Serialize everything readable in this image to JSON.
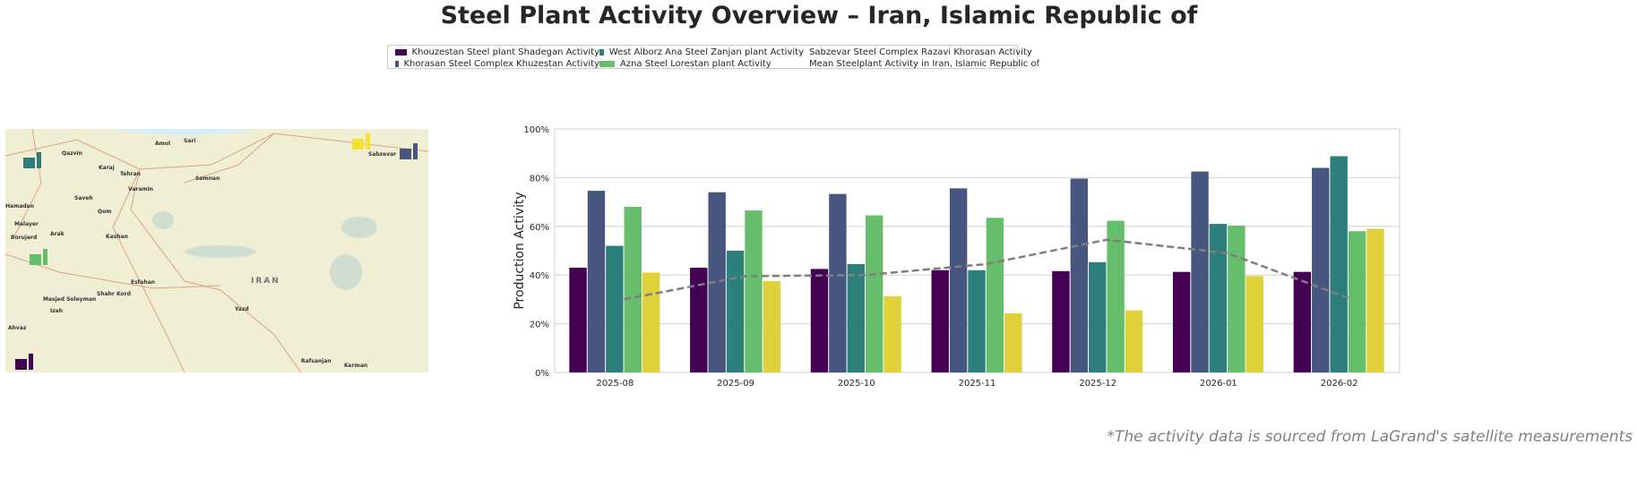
{
  "title": "Steel Plant Activity Overview – Iran, Islamic Republic of",
  "legend": [
    {
      "label": "Khouzestan Steel plant Shadegan Activity",
      "color": "#440154"
    },
    {
      "label": "Khorasan Steel Complex Khuzestan Activity",
      "color": "#46567f"
    },
    {
      "label": "West Alborz Ana Steel Zanjan plant Activity",
      "color": "#2c7f7a"
    },
    {
      "label": "Azna Steel Lorestan plant Activity",
      "color": "#66bd6b"
    },
    {
      "label": "Sabzevar Steel Complex Razavi Khorasan Activity",
      "color": "#e0d13a"
    },
    {
      "label": "Mean Steelplant Activity in Iran, Islamic Republic of",
      "color": "#7f7f7f"
    }
  ],
  "map": {
    "labels": [
      "Qazvin",
      "Karaj",
      "Tehran",
      "Amol",
      "Sari",
      "Varamin",
      "Semnan",
      "Saveh",
      "Qom",
      "Hamadan",
      "Malayer",
      "Arak",
      "Borujerd",
      "Kashan",
      "Esfahan",
      "Shahr Kord",
      "Masjed Soleyman",
      "Izeh",
      "Yazd",
      "IRAN",
      "Ahvaz",
      "Rafsanjan",
      "Kerman",
      "Sabzevar"
    ]
  },
  "chart_data": {
    "type": "bar",
    "title": "",
    "xlabel": "",
    "ylabel": "Production Activity",
    "ylim": [
      0,
      100
    ],
    "yticks": [
      "0%",
      "20%",
      "40%",
      "60%",
      "80%",
      "100%"
    ],
    "grid": true,
    "legend_placement": "top-center",
    "categories": [
      "2025-08",
      "2025-09",
      "2025-10",
      "2025-11",
      "2025-12",
      "2026-01",
      "2026-02"
    ],
    "series": [
      {
        "name": "Khouzestan Steel plant Shadegan Activity",
        "values": [
          43,
          43,
          42.5,
          42,
          41.6,
          41.3,
          41.3
        ]
      },
      {
        "name": "Khorasan Steel Complex Khuzestan Activity",
        "values": [
          74.6,
          74,
          73.3,
          75.6,
          79.6,
          82.5,
          84
        ]
      },
      {
        "name": "West Alborz Ana Steel Zanjan plant Activity",
        "values": [
          52,
          50,
          44.5,
          42,
          45.3,
          61,
          88.8
        ]
      },
      {
        "name": "Azna Steel Lorestan plant Activity",
        "values": [
          68,
          66.5,
          64.5,
          63.5,
          62.3,
          60.3,
          58
        ]
      },
      {
        "name": "Sabzevar Steel Complex Razavi Khorasan Activity",
        "values": [
          41,
          37.5,
          31.3,
          24.3,
          25.5,
          39.6,
          59
        ]
      }
    ],
    "mean_line": {
      "name": "Mean Steelplant Activity in Iran, Islamic Republic of",
      "type": "line",
      "values": [
        30,
        39.5,
        40,
        44.5,
        54.5,
        49,
        30.5
      ]
    }
  },
  "footnote": "*The activity data is sourced from LaGrand's satellite measurements"
}
